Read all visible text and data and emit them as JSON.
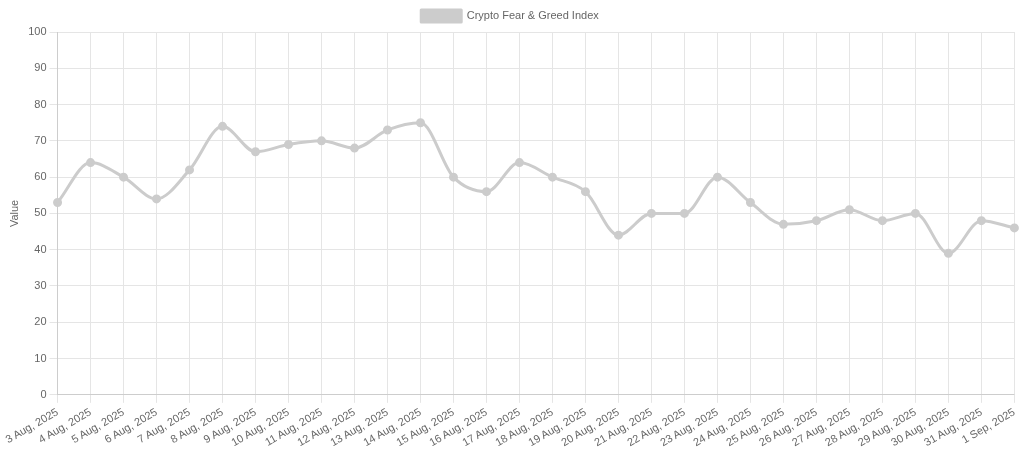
{
  "chart_data": {
    "type": "line",
    "ylabel": "Value",
    "categories": [
      "3 Aug, 2025",
      "4 Aug, 2025",
      "5 Aug, 2025",
      "6 Aug, 2025",
      "7 Aug, 2025",
      "8 Aug, 2025",
      "9 Aug, 2025",
      "10 Aug, 2025",
      "11 Aug, 2025",
      "12 Aug, 2025",
      "13 Aug, 2025",
      "14 Aug, 2025",
      "15 Aug, 2025",
      "16 Aug, 2025",
      "17 Aug, 2025",
      "18 Aug, 2025",
      "19 Aug, 2025",
      "20 Aug, 2025",
      "21 Aug, 2025",
      "22 Aug, 2025",
      "23 Aug, 2025",
      "24 Aug, 2025",
      "25 Aug, 2025",
      "26 Aug, 2025",
      "27 Aug, 2025",
      "28 Aug, 2025",
      "29 Aug, 2025",
      "30 Aug, 2025",
      "31 Aug, 2025",
      "1 Sep, 2025"
    ],
    "series": [
      {
        "name": "Crypto Fear & Greed Index",
        "color": "#cccccc",
        "values": [
          53,
          64,
          60,
          54,
          62,
          74,
          67,
          69,
          70,
          68,
          73,
          75,
          60,
          56,
          64,
          60,
          56,
          44,
          50,
          50,
          60,
          53,
          47,
          48,
          51,
          48,
          50,
          39,
          48,
          46
        ]
      }
    ],
    "ylim": [
      0,
      100
    ],
    "yticks": [
      0,
      10,
      20,
      30,
      40,
      50,
      60,
      70,
      80,
      90,
      100
    ],
    "grid": true,
    "legend": "top",
    "marker": "circle",
    "line_style": "solid"
  }
}
